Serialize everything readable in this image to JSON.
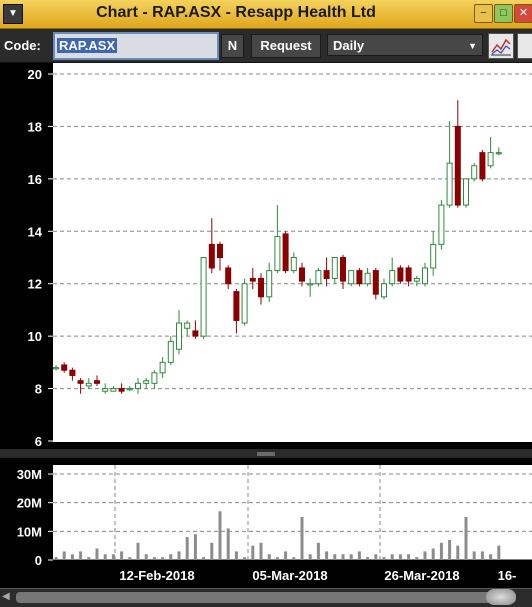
{
  "window": {
    "title": "Chart - RAP.ASX - Resapp Health Ltd",
    "menu_glyph": "▼"
  },
  "toolbar": {
    "code_label": "Code:",
    "code_value": "RAP.ASX",
    "n_label": "N",
    "request_label": "Request",
    "interval_value": "Daily"
  },
  "colors": {
    "up": "#2e8b3e",
    "down": "#8b0000",
    "bg": "#ffffff",
    "panel": "#000000",
    "grid": "#888888"
  },
  "chart_data": [
    {
      "type": "candlestick",
      "ylim": [
        6,
        20
      ],
      "y_ticks": [
        "6",
        "8",
        "10",
        "12",
        "14",
        "16",
        "18",
        "20"
      ],
      "ohlc": [
        [
          8.8,
          8.9,
          8.7,
          8.8
        ],
        [
          8.9,
          9.0,
          8.6,
          8.7
        ],
        [
          8.7,
          8.8,
          8.3,
          8.5
        ],
        [
          8.3,
          8.4,
          7.8,
          8.2
        ],
        [
          8.1,
          8.4,
          8.0,
          8.2
        ],
        [
          8.3,
          8.5,
          8.1,
          8.2
        ],
        [
          7.9,
          8.2,
          7.8,
          8.0
        ],
        [
          7.9,
          8.1,
          7.9,
          8.0
        ],
        [
          8.0,
          8.2,
          7.8,
          7.9
        ],
        [
          8.0,
          8.1,
          7.9,
          8.0
        ],
        [
          8.0,
          8.4,
          7.8,
          8.2
        ],
        [
          8.2,
          8.4,
          8.0,
          8.3
        ],
        [
          8.2,
          8.7,
          8.0,
          8.6
        ],
        [
          8.6,
          9.2,
          8.4,
          9.0
        ],
        [
          9.0,
          10.0,
          8.9,
          9.8
        ],
        [
          9.5,
          11.0,
          9.3,
          10.5
        ],
        [
          10.3,
          10.6,
          10.0,
          10.5
        ],
        [
          10.2,
          10.6,
          9.9,
          10.0
        ],
        [
          10.0,
          13.0,
          9.9,
          13.0
        ],
        [
          13.5,
          14.5,
          12.4,
          12.6
        ],
        [
          13.5,
          13.6,
          12.5,
          13.0
        ],
        [
          12.6,
          12.7,
          11.8,
          12.0
        ],
        [
          11.7,
          11.8,
          10.1,
          10.6
        ],
        [
          10.5,
          12.2,
          10.4,
          12.0
        ],
        [
          12.2,
          12.6,
          11.8,
          12.1
        ],
        [
          12.2,
          12.4,
          11.2,
          11.5
        ],
        [
          11.5,
          12.8,
          11.3,
          12.5
        ],
        [
          12.5,
          15.0,
          12.4,
          13.8
        ],
        [
          13.9,
          14.0,
          12.4,
          12.5
        ],
        [
          12.5,
          13.2,
          12.4,
          13.0
        ],
        [
          12.6,
          12.8,
          11.9,
          12.1
        ],
        [
          12.0,
          12.2,
          11.5,
          12.0
        ],
        [
          12.0,
          12.6,
          11.9,
          12.5
        ],
        [
          12.5,
          13.0,
          11.9,
          12.2
        ],
        [
          12.2,
          13.0,
          12.0,
          13.0
        ],
        [
          13.0,
          13.1,
          11.8,
          12.1
        ],
        [
          12.0,
          12.5,
          11.9,
          12.5
        ],
        [
          12.5,
          12.6,
          11.9,
          12.0
        ],
        [
          12.0,
          12.6,
          11.9,
          12.4
        ],
        [
          12.5,
          12.6,
          11.4,
          11.6
        ],
        [
          11.5,
          12.2,
          11.4,
          12.0
        ],
        [
          12.0,
          13.0,
          11.9,
          12.5
        ],
        [
          12.6,
          12.7,
          12.0,
          12.1
        ],
        [
          12.6,
          12.7,
          11.9,
          12.1
        ],
        [
          12.1,
          12.3,
          11.9,
          12.2
        ],
        [
          12.0,
          12.8,
          11.9,
          12.6
        ],
        [
          12.6,
          14.0,
          12.3,
          13.5
        ],
        [
          13.5,
          15.2,
          13.3,
          15.0
        ],
        [
          15.0,
          18.2,
          14.9,
          16.6
        ],
        [
          18.0,
          19.0,
          14.9,
          15.0
        ],
        [
          15.0,
          16.0,
          14.9,
          16.0
        ],
        [
          16.0,
          16.6,
          15.9,
          16.5
        ],
        [
          17.0,
          17.1,
          15.9,
          16.0
        ],
        [
          16.5,
          17.6,
          16.4,
          17.0
        ],
        [
          17.0,
          17.2,
          16.9,
          17.0
        ]
      ]
    },
    {
      "type": "bar",
      "y_ticks": [
        "0",
        "10M",
        "20M",
        "30M"
      ],
      "ylim": [
        0,
        30
      ],
      "x_labels": [
        "12-Feb-2018",
        "05-Mar-2018",
        "26-Mar-2018",
        "16-"
      ],
      "values": [
        1,
        3,
        2,
        3,
        1,
        4,
        2,
        2,
        3,
        1,
        6,
        2,
        1,
        1,
        2,
        3,
        8,
        9,
        1,
        6,
        17,
        11,
        3,
        1,
        5,
        6,
        2,
        1,
        3,
        1,
        15,
        2,
        6,
        3,
        2,
        2,
        2,
        3,
        1,
        2,
        1,
        2,
        2,
        2,
        1,
        3,
        4,
        6,
        7,
        5,
        15,
        3,
        3,
        2,
        5
      ]
    }
  ]
}
